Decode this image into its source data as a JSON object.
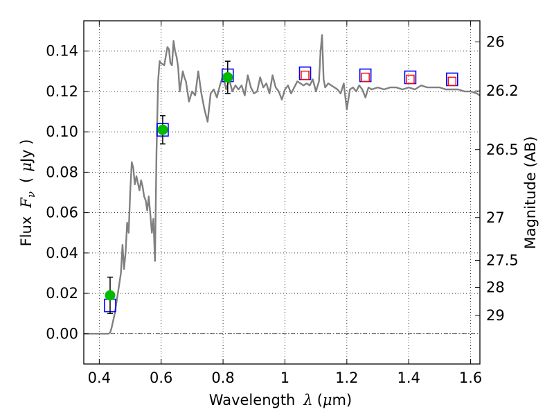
{
  "chart_data": {
    "type": "scatter",
    "xlabel": "Wavelength",
    "xlabel_symbol": "λ",
    "xlabel_unit_open": "(",
    "xlabel_unit_symbol": "μ",
    "xlabel_unit_rest": "m)",
    "ylabel": "Flux",
    "ylabel_symbol": "F",
    "ylabel_subscript": "ν",
    "ylabel_unit_open": "(",
    "ylabel_unit_symbol": "μ",
    "ylabel_unit_rest": "Jy )",
    "y2label": "Magnitude (AB)",
    "xlim": [
      0.35,
      1.63
    ],
    "ylim": [
      -0.015,
      0.155
    ],
    "grid": true,
    "x_ticks": [
      0.4,
      0.6,
      0.8,
      1.0,
      1.2,
      1.4,
      1.6
    ],
    "x_tick_labels": [
      "0.4",
      "0.6",
      "0.8",
      "1",
      "1.2",
      "1.4",
      "1.6"
    ],
    "y_ticks": [
      0.0,
      0.02,
      0.04,
      0.06,
      0.08,
      0.1,
      0.12,
      0.14
    ],
    "y_tick_labels": [
      "0.00",
      "0.02",
      "0.04",
      "0.06",
      "0.08",
      "0.10",
      "0.12",
      "0.14"
    ],
    "y2_ticks": [
      {
        "label": "26",
        "mag": 26.0
      },
      {
        "label": "26.2",
        "mag": 26.2
      },
      {
        "label": "26.5",
        "mag": 26.5
      },
      {
        "label": "27",
        "mag": 27.0
      },
      {
        "label": "27.5",
        "mag": 27.5
      },
      {
        "label": "28",
        "mag": 28.0
      },
      {
        "label": "29",
        "mag": 29.0
      }
    ],
    "colors": {
      "model": "#808080",
      "observed": "#00bb00",
      "model_band_outer": "#0000ff",
      "model_band_inner": "#ff0000",
      "error": "#000000",
      "zero_line": "#000000",
      "grid": "#000000"
    },
    "series": [
      {
        "type": "line",
        "x": [
          0.35,
          0.4,
          0.43,
          0.435,
          0.44,
          0.45,
          0.46,
          0.47,
          0.475,
          0.48,
          0.485,
          0.49,
          0.495,
          0.5,
          0.505,
          0.51,
          0.515,
          0.52,
          0.53,
          0.535,
          0.54,
          0.545,
          0.55,
          0.555,
          0.56,
          0.565,
          0.57,
          0.575,
          0.58,
          0.585,
          0.59,
          0.595,
          0.6,
          0.61,
          0.62,
          0.625,
          0.63,
          0.635,
          0.64,
          0.645,
          0.65,
          0.655,
          0.66,
          0.67,
          0.675,
          0.68,
          0.69,
          0.7,
          0.71,
          0.72,
          0.73,
          0.74,
          0.75,
          0.76,
          0.77,
          0.78,
          0.79,
          0.8,
          0.81,
          0.82,
          0.83,
          0.84,
          0.85,
          0.86,
          0.87,
          0.88,
          0.89,
          0.9,
          0.91,
          0.92,
          0.93,
          0.94,
          0.95,
          0.96,
          0.97,
          0.98,
          0.99,
          1.0,
          1.01,
          1.02,
          1.03,
          1.04,
          1.05,
          1.06,
          1.07,
          1.08,
          1.09,
          1.1,
          1.11,
          1.115,
          1.12,
          1.125,
          1.13,
          1.14,
          1.15,
          1.16,
          1.17,
          1.18,
          1.19,
          1.2,
          1.21,
          1.22,
          1.23,
          1.24,
          1.25,
          1.26,
          1.27,
          1.28,
          1.3,
          1.32,
          1.34,
          1.36,
          1.38,
          1.4,
          1.42,
          1.44,
          1.46,
          1.48,
          1.5,
          1.52,
          1.54,
          1.56,
          1.58,
          1.6,
          1.62,
          1.63
        ],
        "y": [
          0.0,
          0.0,
          0.0,
          0.0005,
          0.003,
          0.01,
          0.02,
          0.03,
          0.044,
          0.032,
          0.04,
          0.055,
          0.05,
          0.07,
          0.085,
          0.082,
          0.074,
          0.078,
          0.071,
          0.076,
          0.073,
          0.068,
          0.066,
          0.061,
          0.068,
          0.059,
          0.05,
          0.057,
          0.036,
          0.09,
          0.125,
          0.135,
          0.134,
          0.133,
          0.142,
          0.141,
          0.134,
          0.133,
          0.145,
          0.14,
          0.137,
          0.132,
          0.12,
          0.13,
          0.127,
          0.125,
          0.115,
          0.12,
          0.118,
          0.13,
          0.119,
          0.111,
          0.105,
          0.119,
          0.121,
          0.117,
          0.123,
          0.128,
          0.121,
          0.126,
          0.12,
          0.123,
          0.121,
          0.123,
          0.118,
          0.128,
          0.122,
          0.119,
          0.12,
          0.127,
          0.122,
          0.124,
          0.119,
          0.128,
          0.122,
          0.12,
          0.116,
          0.121,
          0.123,
          0.119,
          0.122,
          0.125,
          0.124,
          0.123,
          0.124,
          0.123,
          0.126,
          0.12,
          0.125,
          0.14,
          0.148,
          0.126,
          0.122,
          0.124,
          0.123,
          0.122,
          0.121,
          0.119,
          0.124,
          0.111,
          0.121,
          0.122,
          0.12,
          0.123,
          0.121,
          0.117,
          0.122,
          0.121,
          0.122,
          0.121,
          0.122,
          0.122,
          0.121,
          0.122,
          0.121,
          0.123,
          0.122,
          0.122,
          0.122,
          0.121,
          0.121,
          0.121,
          0.12,
          0.12,
          0.119,
          0.118
        ]
      },
      {
        "type": "scatter",
        "marker": "square-open",
        "x": [
          0.435,
          0.605,
          0.815,
          1.065,
          1.26,
          1.405,
          1.54
        ],
        "y": [
          0.014,
          0.101,
          0.128,
          0.129,
          0.128,
          0.127,
          0.126
        ]
      },
      {
        "type": "scatter",
        "marker": "square-open-small",
        "x": [
          1.065,
          1.26,
          1.405,
          1.54
        ],
        "y": [
          0.128,
          0.127,
          0.126,
          0.125
        ]
      },
      {
        "type": "errorbar",
        "marker": "circle-filled",
        "x": [
          0.435,
          0.605,
          0.815
        ],
        "y": [
          0.019,
          0.101,
          0.127
        ],
        "yerr": [
          0.009,
          0.007,
          0.008
        ]
      }
    ]
  }
}
